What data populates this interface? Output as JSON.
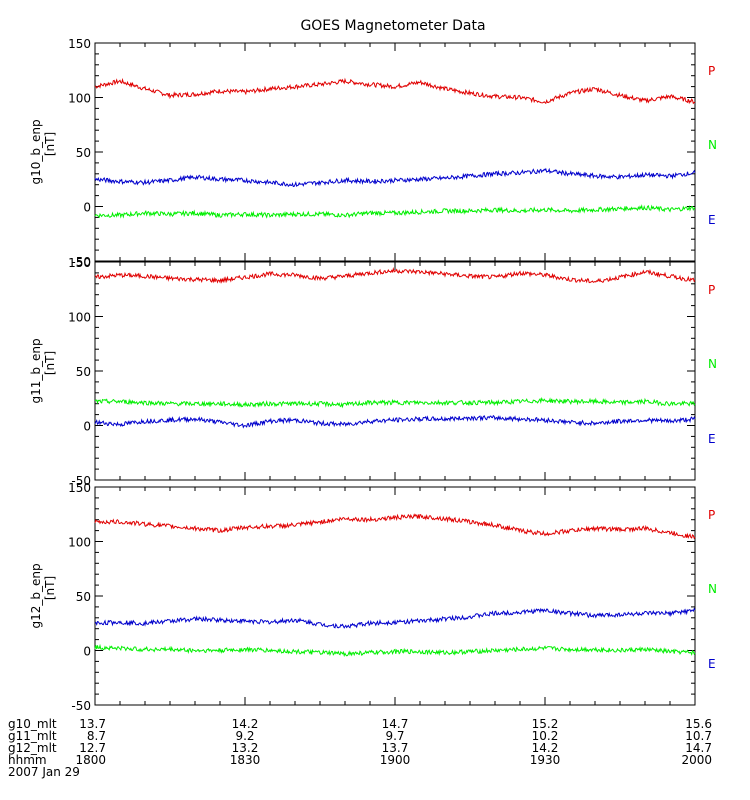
{
  "chart_data": {
    "type": "line",
    "title": "GOES Magnetometer Data",
    "xlim": [
      "1800",
      "2000"
    ],
    "x_unit_note": "hhmm",
    "colors": {
      "P": "#e00000",
      "N": "#00ee00",
      "E": "#0000cc"
    },
    "legend": [
      "P",
      "N",
      "E"
    ],
    "panels": [
      {
        "ylabel": "g10_b_enp",
        "yunit": "[nT]",
        "ylim": [
          -50,
          150
        ],
        "yticks": [
          "150",
          "100",
          "50",
          "0",
          "-50"
        ],
        "series": [
          {
            "name": "P",
            "x": [
              "1800",
              "1805",
              "1810",
              "1815",
              "1820",
              "1825",
              "1830",
              "1835",
              "1840",
              "1845",
              "1850",
              "1855",
              "1900",
              "1905",
              "1910",
              "1915",
              "1920",
              "1925",
              "1930",
              "1935",
              "1940",
              "1945",
              "1950",
              "1955",
              "2000"
            ],
            "values": [
              110,
              115,
              108,
              102,
              103,
              106,
              105,
              108,
              110,
              112,
              115,
              112,
              110,
              114,
              108,
              104,
              101,
              100,
              96,
              104,
              108,
              102,
              97,
              101,
              96
            ]
          },
          {
            "name": "N",
            "x": [
              "1800",
              "1805",
              "1810",
              "1815",
              "1820",
              "1825",
              "1830",
              "1835",
              "1840",
              "1845",
              "1850",
              "1855",
              "1900",
              "1905",
              "1910",
              "1915",
              "1920",
              "1925",
              "1930",
              "1935",
              "1940",
              "1945",
              "1950",
              "1955",
              "2000"
            ],
            "values": [
              -8,
              -8,
              -6,
              -7,
              -6,
              -8,
              -7,
              -8,
              -7,
              -7,
              -8,
              -6,
              -6,
              -5,
              -4,
              -4,
              -3,
              -4,
              -3,
              -4,
              -3,
              -2,
              -1,
              -3,
              -1
            ]
          },
          {
            "name": "E",
            "x": [
              "1800",
              "1805",
              "1810",
              "1815",
              "1820",
              "1825",
              "1830",
              "1835",
              "1840",
              "1845",
              "1850",
              "1855",
              "1900",
              "1905",
              "1910",
              "1915",
              "1920",
              "1925",
              "1930",
              "1935",
              "1940",
              "1945",
              "1950",
              "1955",
              "2000"
            ],
            "values": [
              25,
              23,
              22,
              24,
              27,
              25,
              24,
              22,
              20,
              22,
              24,
              23,
              24,
              25,
              26,
              28,
              30,
              31,
              33,
              30,
              28,
              27,
              29,
              28,
              31
            ]
          }
        ]
      },
      {
        "ylabel": "g11_b_enp",
        "yunit": "[nT]",
        "ylim": [
          -50,
          150
        ],
        "yticks": [
          "150",
          "100",
          "50",
          "0",
          "-50"
        ],
        "series": [
          {
            "name": "P",
            "x": [
              "1800",
              "1805",
              "1810",
              "1815",
              "1820",
              "1825",
              "1830",
              "1835",
              "1840",
              "1845",
              "1850",
              "1855",
              "1900",
              "1905",
              "1910",
              "1915",
              "1920",
              "1925",
              "1930",
              "1935",
              "1940",
              "1945",
              "1950",
              "1955",
              "2000"
            ],
            "values": [
              136,
              138,
              137,
              135,
              134,
              133,
              136,
              139,
              138,
              135,
              137,
              140,
              142,
              141,
              139,
              137,
              136,
              140,
              138,
              134,
              132,
              136,
              141,
              137,
              133
            ]
          },
          {
            "name": "N",
            "x": [
              "1800",
              "1805",
              "1810",
              "1815",
              "1820",
              "1825",
              "1830",
              "1835",
              "1840",
              "1845",
              "1850",
              "1855",
              "1900",
              "1905",
              "1910",
              "1915",
              "1920",
              "1925",
              "1930",
              "1935",
              "1940",
              "1945",
              "1950",
              "1955",
              "2000"
            ],
            "values": [
              22,
              22,
              21,
              20,
              20,
              20,
              19,
              20,
              20,
              20,
              19,
              21,
              21,
              21,
              21,
              21,
              21,
              22,
              23,
              22,
              22,
              21,
              22,
              20,
              20
            ]
          },
          {
            "name": "E",
            "x": [
              "1800",
              "1805",
              "1810",
              "1815",
              "1820",
              "1825",
              "1830",
              "1835",
              "1840",
              "1845",
              "1850",
              "1855",
              "1900",
              "1905",
              "1910",
              "1915",
              "1920",
              "1925",
              "1930",
              "1935",
              "1940",
              "1945",
              "1950",
              "1955",
              "2000"
            ],
            "values": [
              3,
              1,
              4,
              5,
              6,
              3,
              0,
              4,
              5,
              2,
              1,
              4,
              5,
              6,
              6,
              7,
              7,
              6,
              5,
              3,
              2,
              4,
              5,
              4,
              6
            ]
          }
        ]
      },
      {
        "ylabel": "g12_b_enp",
        "yunit": "[nT]",
        "ylim": [
          -50,
          150
        ],
        "yticks": [
          "150",
          "100",
          "50",
          "0",
          "-50"
        ],
        "series": [
          {
            "name": "P",
            "x": [
              "1800",
              "1805",
              "1810",
              "1815",
              "1820",
              "1825",
              "1830",
              "1835",
              "1840",
              "1845",
              "1850",
              "1855",
              "1900",
              "1905",
              "1910",
              "1915",
              "1920",
              "1925",
              "1930",
              "1935",
              "1940",
              "1945",
              "1950",
              "1955",
              "2000"
            ],
            "values": [
              118,
              118,
              116,
              114,
              112,
              110,
              113,
              114,
              115,
              118,
              121,
              120,
              122,
              123,
              121,
              118,
              115,
              110,
              107,
              110,
              112,
              111,
              112,
              108,
              104
            ]
          },
          {
            "name": "N",
            "x": [
              "1800",
              "1805",
              "1810",
              "1815",
              "1820",
              "1825",
              "1830",
              "1835",
              "1840",
              "1845",
              "1850",
              "1855",
              "1900",
              "1905",
              "1910",
              "1915",
              "1920",
              "1925",
              "1930",
              "1935",
              "1940",
              "1945",
              "1950",
              "1955",
              "2000"
            ],
            "values": [
              3,
              2,
              1,
              1,
              0,
              0,
              1,
              0,
              -1,
              -2,
              -3,
              -2,
              -1,
              -1,
              -2,
              -1,
              0,
              1,
              2,
              1,
              1,
              0,
              1,
              -1,
              -2
            ]
          },
          {
            "name": "E",
            "x": [
              "1800",
              "1805",
              "1810",
              "1815",
              "1820",
              "1825",
              "1830",
              "1835",
              "1840",
              "1845",
              "1850",
              "1855",
              "1900",
              "1905",
              "1910",
              "1915",
              "1920",
              "1925",
              "1930",
              "1935",
              "1940",
              "1945",
              "1950",
              "1955",
              "2000"
            ],
            "values": [
              25,
              26,
              25,
              27,
              29,
              28,
              27,
              26,
              28,
              24,
              22,
              25,
              26,
              27,
              29,
              31,
              34,
              35,
              37,
              34,
              32,
              33,
              34,
              34,
              37
            ]
          }
        ]
      }
    ],
    "x_table": {
      "row_labels": [
        "g10_mlt",
        "g11_mlt",
        "g12_mlt",
        "hhmm"
      ],
      "columns": [
        [
          "13.7",
          "8.7",
          "12.7",
          "1800"
        ],
        [
          "14.2",
          "9.2",
          "13.2",
          "1830"
        ],
        [
          "14.7",
          "9.7",
          "13.7",
          "1900"
        ],
        [
          "15.2",
          "10.2",
          "14.2",
          "1930"
        ],
        [
          "15.6",
          "10.7",
          "14.7",
          "2000"
        ]
      ],
      "date": "2007 Jan 29"
    }
  }
}
